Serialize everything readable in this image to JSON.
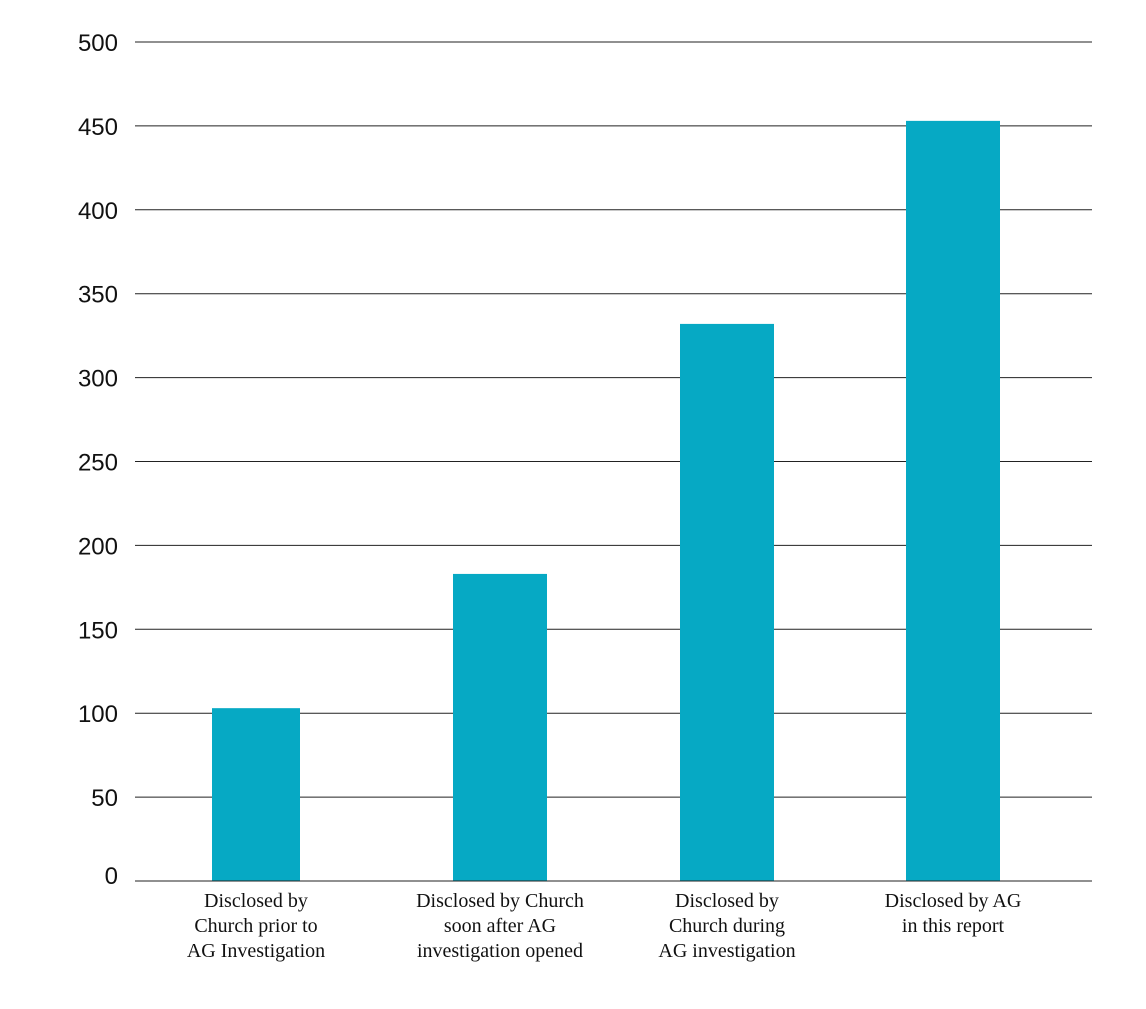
{
  "chart_data": {
    "type": "bar",
    "categories": [
      [
        "Disclosed by",
        "Church prior to",
        "AG Investigation"
      ],
      [
        "Disclosed by Church",
        "soon after AG",
        "investigation opened"
      ],
      [
        "Disclosed by",
        "Church during",
        "AG investigation"
      ],
      [
        "Disclosed by AG",
        "in this report"
      ]
    ],
    "values": [
      103,
      183,
      332,
      453
    ],
    "ylim": [
      0,
      500
    ],
    "yticks": [
      0,
      50,
      100,
      150,
      200,
      250,
      300,
      350,
      400,
      450,
      500
    ],
    "grid": true,
    "bar_color": "#06a9c4",
    "gridline_color": "#222222"
  }
}
